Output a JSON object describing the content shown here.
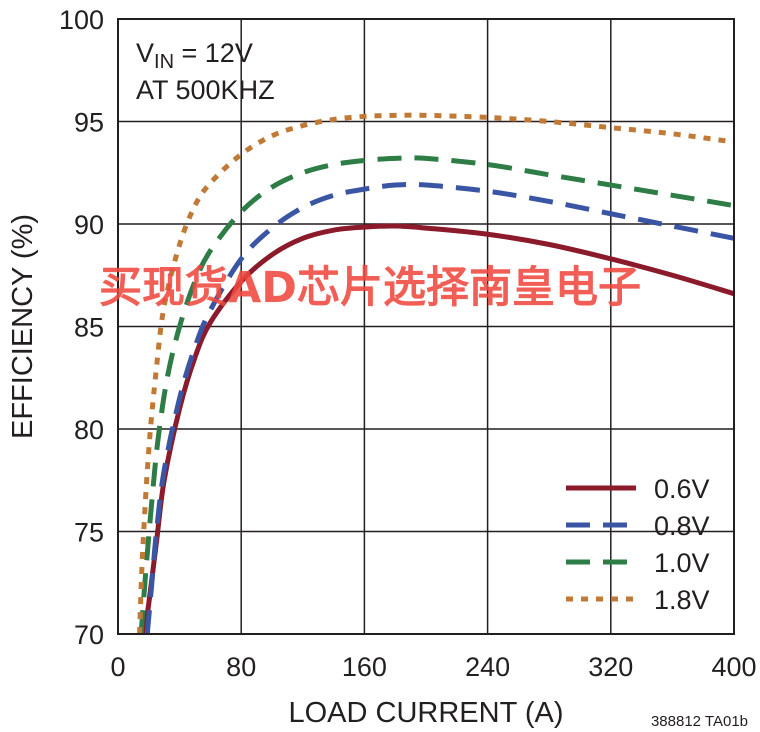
{
  "chart_data": {
    "type": "line",
    "title": "",
    "xlabel": "LOAD CURRENT (A)",
    "ylabel": "EFFICIENCY (%)",
    "xlim": [
      0,
      400
    ],
    "ylim": [
      70,
      100
    ],
    "xticks": [
      0,
      80,
      160,
      240,
      320,
      400
    ],
    "yticks": [
      70,
      75,
      80,
      85,
      90,
      95,
      100
    ],
    "grid": true,
    "legend_position": "bottom-right",
    "annotation": {
      "line1_main": "V",
      "line1_sub": "IN",
      "line1_rest": " = 12V",
      "line2": "AT 500KHZ"
    },
    "series": [
      {
        "name": "0.6V",
        "color": "#8b1a2b",
        "style": "solid",
        "points": [
          [
            17,
            70
          ],
          [
            20,
            71.5
          ],
          [
            25,
            74.5
          ],
          [
            30,
            77.5
          ],
          [
            40,
            81
          ],
          [
            50,
            83.5
          ],
          [
            60,
            85.2
          ],
          [
            80,
            87.2
          ],
          [
            100,
            88.5
          ],
          [
            120,
            89.3
          ],
          [
            140,
            89.7
          ],
          [
            160,
            89.85
          ],
          [
            180,
            89.9
          ],
          [
            200,
            89.8
          ],
          [
            240,
            89.5
          ],
          [
            280,
            89
          ],
          [
            320,
            88.3
          ],
          [
            360,
            87.5
          ],
          [
            400,
            86.6
          ]
        ]
      },
      {
        "name": "0.8V",
        "color": "#3a55a4",
        "style": "dashed",
        "points": [
          [
            19,
            70
          ],
          [
            22,
            72.5
          ],
          [
            25,
            75
          ],
          [
            30,
            78
          ],
          [
            40,
            81.5
          ],
          [
            50,
            84
          ],
          [
            60,
            85.8
          ],
          [
            80,
            88.3
          ],
          [
            100,
            89.8
          ],
          [
            120,
            90.8
          ],
          [
            140,
            91.4
          ],
          [
            160,
            91.7
          ],
          [
            180,
            91.9
          ],
          [
            200,
            91.9
          ],
          [
            240,
            91.6
          ],
          [
            280,
            91.1
          ],
          [
            320,
            90.5
          ],
          [
            360,
            89.9
          ],
          [
            400,
            89.3
          ]
        ]
      },
      {
        "name": "1.0V",
        "color": "#2e7d46",
        "style": "dashed",
        "points": [
          [
            15,
            70
          ],
          [
            18,
            73
          ],
          [
            22,
            76.5
          ],
          [
            26,
            79.5
          ],
          [
            32,
            82.5
          ],
          [
            40,
            85
          ],
          [
            50,
            87.2
          ],
          [
            60,
            88.7
          ],
          [
            80,
            90.6
          ],
          [
            100,
            91.8
          ],
          [
            120,
            92.5
          ],
          [
            140,
            92.9
          ],
          [
            160,
            93.1
          ],
          [
            180,
            93.2
          ],
          [
            200,
            93.2
          ],
          [
            240,
            92.9
          ],
          [
            280,
            92.4
          ],
          [
            320,
            91.9
          ],
          [
            360,
            91.4
          ],
          [
            400,
            90.9
          ]
        ]
      },
      {
        "name": "1.8V",
        "color": "#c07a35",
        "style": "dotted",
        "points": [
          [
            14,
            70
          ],
          [
            16,
            74
          ],
          [
            20,
            79
          ],
          [
            25,
            83
          ],
          [
            30,
            86
          ],
          [
            40,
            89
          ],
          [
            50,
            90.9
          ],
          [
            60,
            92
          ],
          [
            80,
            93.4
          ],
          [
            100,
            94.3
          ],
          [
            120,
            94.8
          ],
          [
            140,
            95.1
          ],
          [
            160,
            95.25
          ],
          [
            180,
            95.3
          ],
          [
            200,
            95.3
          ],
          [
            240,
            95.2
          ],
          [
            280,
            95
          ],
          [
            320,
            94.7
          ],
          [
            360,
            94.4
          ],
          [
            400,
            94
          ]
        ]
      }
    ]
  },
  "watermark": "买现货AD芯片选择南皇电子",
  "figure_code": "388812 TA01b"
}
